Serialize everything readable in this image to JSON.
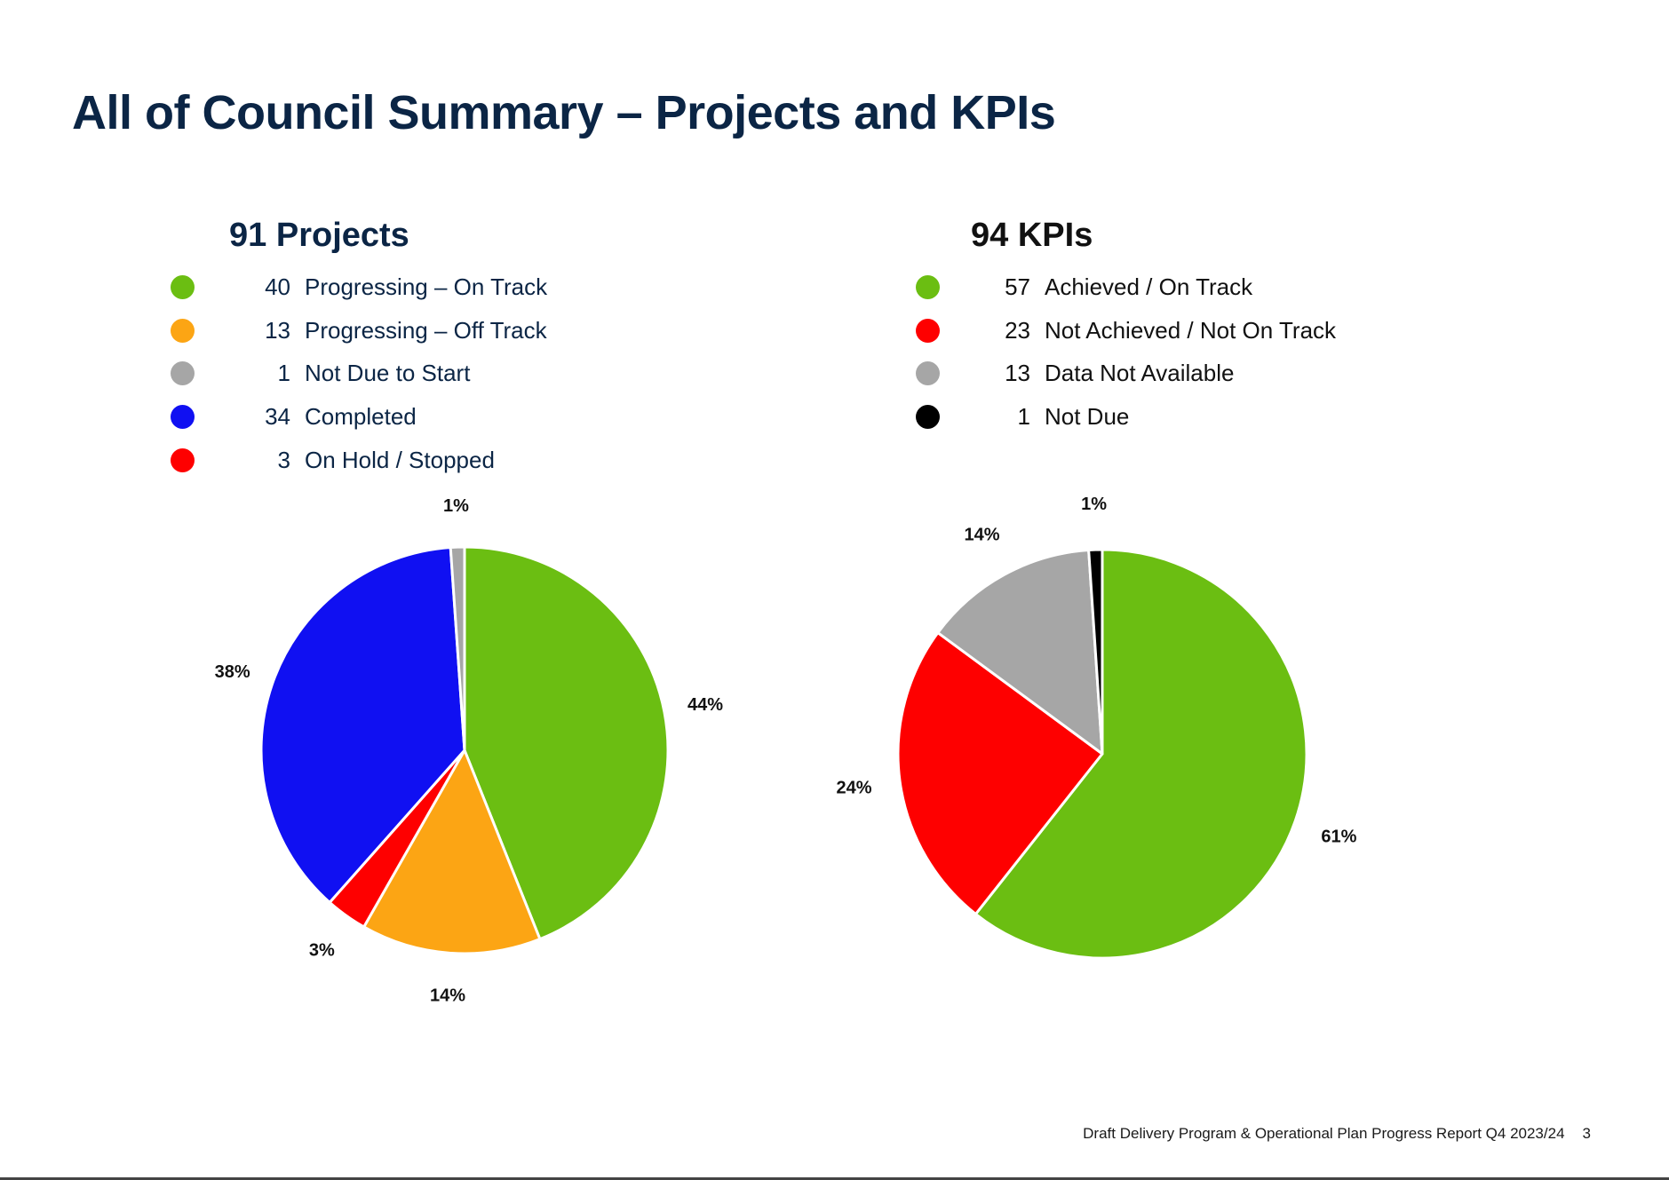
{
  "title": "All of Council Summary – Projects and KPIs",
  "footer": {
    "text": "Draft Delivery Program & Operational Plan Progress Report Q4 2023/24",
    "page": "3"
  },
  "chart_data": [
    {
      "type": "pie",
      "total_count": "91",
      "total_label": "Projects",
      "text_color": "#0b2545",
      "slices": [
        {
          "label": "Progressing – On Track",
          "count": 40,
          "percent_label": "44%",
          "color": "#6bbe12"
        },
        {
          "label": "Progressing – Off Track",
          "count": 13,
          "percent_label": "14%",
          "color": "#fca514"
        },
        {
          "label": "Not Due to Start",
          "count": 1,
          "percent_label": "1%",
          "color": "#a6a6a6"
        },
        {
          "label": "Completed",
          "count": 34,
          "percent_label": "38%",
          "color": "#1010f2"
        },
        {
          "label": "On Hold / Stopped",
          "count": 3,
          "percent_label": "3%",
          "color": "#fe0000"
        }
      ],
      "pie_order": [
        0,
        1,
        4,
        3,
        2
      ]
    },
    {
      "type": "pie",
      "total_count": "94",
      "total_label": "KPIs",
      "text_color": "#111111",
      "slices": [
        {
          "label": "Achieved / On Track",
          "count": 57,
          "percent_label": "61%",
          "color": "#6bbe12"
        },
        {
          "label": "Not Achieved / Not On Track",
          "count": 23,
          "percent_label": "24%",
          "color": "#fe0000"
        },
        {
          "label": "Data Not Available",
          "count": 13,
          "percent_label": "14%",
          "color": "#a6a6a6"
        },
        {
          "label": "Not Due",
          "count": 1,
          "percent_label": "1%",
          "color": "#000000"
        }
      ],
      "pie_order": [
        0,
        1,
        2,
        3
      ]
    }
  ]
}
